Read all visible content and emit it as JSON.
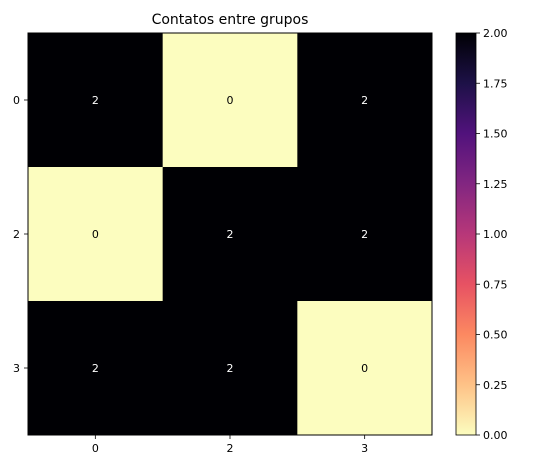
{
  "chart_data": {
    "type": "heatmap",
    "title": "Contatos entre grupos",
    "xlabel": "",
    "ylabel": "",
    "x_categories": [
      "0",
      "2",
      "3"
    ],
    "y_categories": [
      "0",
      "2",
      "3"
    ],
    "values": [
      [
        2,
        0,
        2
      ],
      [
        0,
        2,
        2
      ],
      [
        2,
        2,
        0
      ]
    ],
    "cell_labels": [
      [
        "2",
        "0",
        "2"
      ],
      [
        "0",
        "2",
        "2"
      ],
      [
        "2",
        "2",
        "0"
      ]
    ],
    "colormap": "magma_r",
    "vmin": 0,
    "vmax": 2,
    "colorbar_ticks": [
      "0.00",
      "0.25",
      "0.50",
      "0.75",
      "1.00",
      "1.25",
      "1.50",
      "1.75",
      "2.00"
    ],
    "colors": {
      "low": "#fcfdbf",
      "high": "#000004",
      "label_on_dark": "#ffffff",
      "label_on_light": "#000000"
    }
  }
}
